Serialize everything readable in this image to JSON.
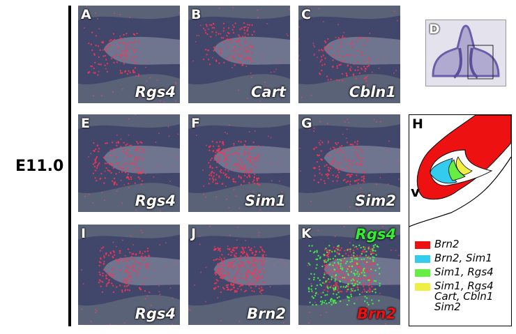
{
  "stage_label": "E11.0",
  "panels": [
    {
      "letter": "A",
      "labels": [
        {
          "text": "Rgs4",
          "color": "#ffffff"
        }
      ]
    },
    {
      "letter": "B",
      "labels": [
        {
          "text": "Cart",
          "color": "#ffffff"
        }
      ]
    },
    {
      "letter": "C",
      "labels": [
        {
          "text": "Cbln1",
          "color": "#ffffff"
        }
      ]
    },
    {
      "letter": "E",
      "labels": [
        {
          "text": "Rgs4",
          "color": "#ffffff"
        }
      ]
    },
    {
      "letter": "F",
      "labels": [
        {
          "text": "Sim1",
          "color": "#ffffff"
        }
      ]
    },
    {
      "letter": "G",
      "labels": [
        {
          "text": "Sim2",
          "color": "#ffffff"
        }
      ]
    },
    {
      "letter": "I",
      "labels": [
        {
          "text": "Rgs4",
          "color": "#ffffff"
        }
      ]
    },
    {
      "letter": "J",
      "labels": [
        {
          "text": "Brn2",
          "color": "#ffffff"
        }
      ]
    },
    {
      "letter": "K",
      "labels": [
        {
          "text": "Rgs4",
          "color": "#33ee33"
        },
        {
          "text": "Brn2",
          "color": "#ee1111"
        }
      ]
    }
  ],
  "panel_d": {
    "letter": "D"
  },
  "panel_h": {
    "letter": "H",
    "region_label": "v",
    "legend": [
      {
        "color": "#ee1111",
        "lines": [
          "Brn2"
        ]
      },
      {
        "color": "#33ccee",
        "lines": [
          "Brn2, Sim1"
        ]
      },
      {
        "color": "#66ee44",
        "lines": [
          "Sim1, Rgs4"
        ]
      },
      {
        "color": "#eeee44",
        "lines": [
          "Sim1, Rgs4",
          "Cart, Cbln1",
          "Sim2"
        ]
      }
    ]
  }
}
